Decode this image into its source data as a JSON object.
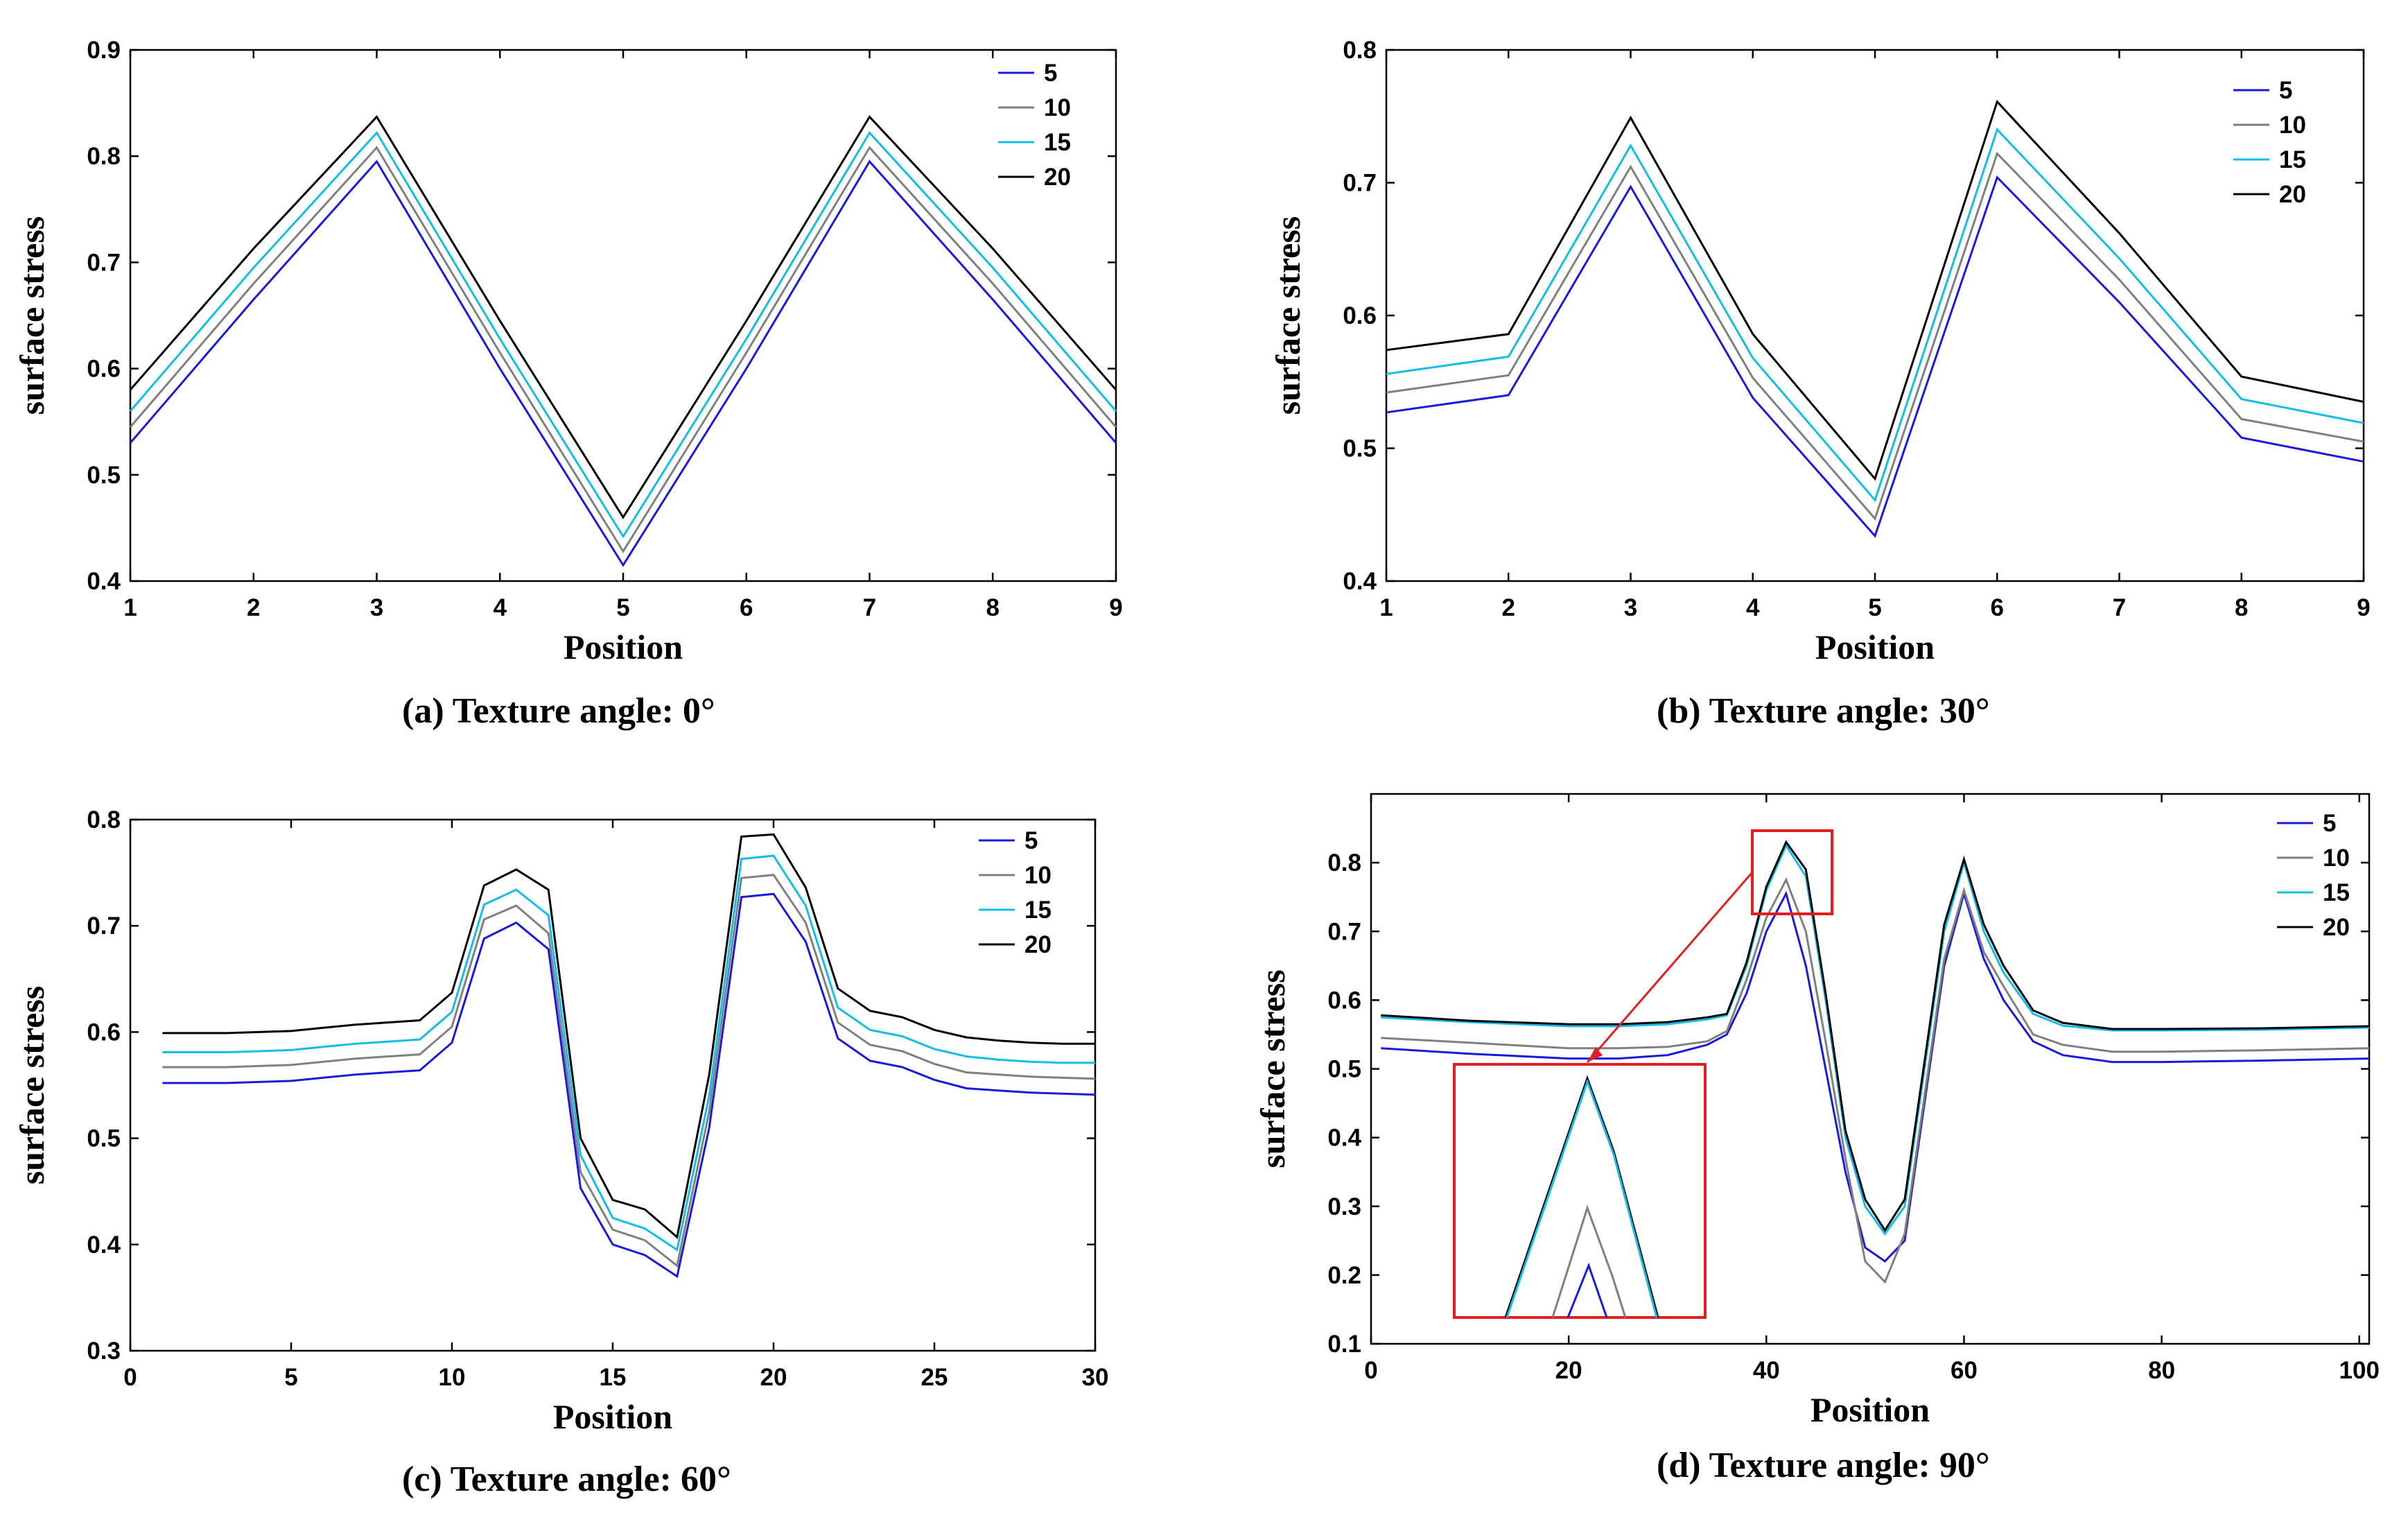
{
  "colors": {
    "s5": "#1a1adc",
    "s10": "#808080",
    "s15": "#14bde8",
    "s20": "#000000",
    "inset": "#e02020"
  },
  "chart_data": [
    {
      "id": "a",
      "type": "line",
      "caption": "(a)   Texture angle: 0°",
      "xlabel": "Position",
      "ylabel": "surface stress",
      "xlim": [
        1,
        9
      ],
      "ylim": [
        0.4,
        0.9
      ],
      "xticks": [
        "1",
        "2",
        "3",
        "4",
        "5",
        "6",
        "7",
        "8",
        "9"
      ],
      "yticks": [
        "0.4",
        "0.5",
        "0.6",
        "0.7",
        "0.8",
        "0.9"
      ],
      "legend": [
        "5",
        "10",
        "15",
        "20"
      ],
      "x": [
        1,
        2,
        3,
        4,
        5,
        6,
        7,
        8,
        9
      ],
      "series": [
        {
          "name": "5",
          "values": [
            0.53,
            0.665,
            0.795,
            0.6,
            0.415,
            0.6,
            0.795,
            0.665,
            0.53
          ]
        },
        {
          "name": "10",
          "values": [
            0.545,
            0.68,
            0.808,
            0.615,
            0.428,
            0.615,
            0.808,
            0.68,
            0.545
          ]
        },
        {
          "name": "15",
          "values": [
            0.56,
            0.695,
            0.822,
            0.628,
            0.442,
            0.628,
            0.822,
            0.695,
            0.56
          ]
        },
        {
          "name": "20",
          "values": [
            0.58,
            0.713,
            0.837,
            0.645,
            0.46,
            0.645,
            0.837,
            0.713,
            0.58
          ]
        }
      ]
    },
    {
      "id": "b",
      "type": "line",
      "caption": "(b)   Texture angle: 30°",
      "xlabel": "Position",
      "ylabel": "surface stress",
      "xlim": [
        1,
        9
      ],
      "ylim": [
        0.4,
        0.8
      ],
      "xticks": [
        "1",
        "2",
        "3",
        "4",
        "5",
        "6",
        "7",
        "8",
        "9"
      ],
      "yticks": [
        "0.4",
        "0.5",
        "0.6",
        "0.7",
        "0.8"
      ],
      "legend": [
        "5",
        "10",
        "15",
        "20"
      ],
      "x": [
        1,
        2,
        3,
        4,
        5,
        6,
        7,
        8,
        9
      ],
      "series": [
        {
          "name": "5",
          "values": [
            0.527,
            0.54,
            0.697,
            0.538,
            0.434,
            0.704,
            0.61,
            0.508,
            0.49
          ]
        },
        {
          "name": "10",
          "values": [
            0.542,
            0.555,
            0.712,
            0.553,
            0.447,
            0.722,
            0.627,
            0.522,
            0.505
          ]
        },
        {
          "name": "15",
          "values": [
            0.556,
            0.569,
            0.728,
            0.568,
            0.461,
            0.74,
            0.643,
            0.537,
            0.519
          ]
        },
        {
          "name": "20",
          "values": [
            0.574,
            0.586,
            0.749,
            0.586,
            0.477,
            0.761,
            0.662,
            0.554,
            0.535
          ]
        }
      ]
    },
    {
      "id": "c",
      "type": "line",
      "caption": "(c)   Texture angle: 60°",
      "xlabel": "Position",
      "ylabel": "surface stress",
      "xlim": [
        0,
        30
      ],
      "ylim": [
        0.3,
        0.8
      ],
      "xticks": [
        "0",
        "5",
        "10",
        "15",
        "20",
        "25",
        "30"
      ],
      "yticks": [
        "0.3",
        "0.4",
        "0.5",
        "0.6",
        "0.7",
        "0.8"
      ],
      "legend": [
        "5",
        "10",
        "15",
        "20"
      ],
      "x": [
        1,
        2,
        3,
        4,
        5,
        6,
        7,
        8,
        9,
        10,
        11,
        12,
        13,
        14,
        15,
        16,
        17,
        18,
        19,
        20,
        21,
        22,
        23,
        24,
        25,
        26,
        27,
        28,
        29,
        30
      ],
      "series": [
        {
          "name": "5",
          "values": [
            0.552,
            0.552,
            0.552,
            0.553,
            0.554,
            0.557,
            0.56,
            0.562,
            0.564,
            0.59,
            0.688,
            0.703,
            0.678,
            0.453,
            0.4,
            0.39,
            0.37,
            0.51,
            0.727,
            0.73,
            0.685,
            0.594,
            0.573,
            0.567,
            0.555,
            0.547,
            0.545,
            0.543,
            0.542,
            0.541
          ]
        },
        {
          "name": "10",
          "values": [
            0.567,
            0.567,
            0.567,
            0.568,
            0.569,
            0.572,
            0.575,
            0.577,
            0.579,
            0.605,
            0.706,
            0.719,
            0.693,
            0.468,
            0.414,
            0.404,
            0.38,
            0.525,
            0.745,
            0.748,
            0.703,
            0.609,
            0.588,
            0.582,
            0.57,
            0.562,
            0.56,
            0.558,
            0.557,
            0.556
          ]
        },
        {
          "name": "15",
          "values": [
            0.581,
            0.581,
            0.581,
            0.582,
            0.583,
            0.586,
            0.589,
            0.591,
            0.593,
            0.619,
            0.72,
            0.734,
            0.71,
            0.484,
            0.425,
            0.415,
            0.395,
            0.54,
            0.763,
            0.766,
            0.719,
            0.623,
            0.602,
            0.596,
            0.584,
            0.577,
            0.574,
            0.572,
            0.571,
            0.571
          ]
        },
        {
          "name": "20",
          "values": [
            0.599,
            0.599,
            0.599,
            0.6,
            0.601,
            0.604,
            0.607,
            0.609,
            0.611,
            0.637,
            0.738,
            0.753,
            0.734,
            0.5,
            0.442,
            0.433,
            0.407,
            0.56,
            0.784,
            0.786,
            0.736,
            0.641,
            0.62,
            0.614,
            0.602,
            0.595,
            0.592,
            0.59,
            0.589,
            0.589
          ]
        }
      ]
    },
    {
      "id": "d",
      "type": "line",
      "caption": "(d)   Texture angle: 90°",
      "xlabel": "Position",
      "ylabel": "surface stress",
      "xlim": [
        0,
        101
      ],
      "ylim": [
        0.1,
        0.9
      ],
      "xticks": [
        "0",
        "20",
        "40",
        "60",
        "80",
        "100"
      ],
      "yticks": [
        "0.1",
        "0.2",
        "0.3",
        "0.4",
        "0.5",
        "0.6",
        "0.7",
        "0.8"
      ],
      "legend": [
        "5",
        "10",
        "15",
        "20"
      ],
      "x": [
        1,
        10,
        20,
        25,
        30,
        34,
        36,
        38,
        40,
        42,
        44,
        46,
        48,
        50,
        52,
        54,
        56,
        58,
        60,
        62,
        64,
        67,
        70,
        75,
        80,
        90,
        101
      ],
      "series": [
        {
          "name": "5",
          "values": [
            0.53,
            0.522,
            0.515,
            0.515,
            0.52,
            0.535,
            0.55,
            0.61,
            0.7,
            0.755,
            0.65,
            0.5,
            0.35,
            0.24,
            0.22,
            0.25,
            0.45,
            0.65,
            0.755,
            0.66,
            0.6,
            0.54,
            0.52,
            0.51,
            0.51,
            0.512,
            0.515
          ]
        },
        {
          "name": "10",
          "values": [
            0.545,
            0.538,
            0.53,
            0.53,
            0.532,
            0.54,
            0.555,
            0.63,
            0.72,
            0.775,
            0.7,
            0.54,
            0.37,
            0.22,
            0.19,
            0.26,
            0.46,
            0.66,
            0.76,
            0.67,
            0.62,
            0.55,
            0.535,
            0.525,
            0.525,
            0.527,
            0.53
          ]
        },
        {
          "name": "15",
          "values": [
            0.575,
            0.568,
            0.562,
            0.562,
            0.565,
            0.572,
            0.578,
            0.65,
            0.76,
            0.825,
            0.78,
            0.6,
            0.4,
            0.3,
            0.26,
            0.3,
            0.5,
            0.7,
            0.8,
            0.7,
            0.64,
            0.58,
            0.563,
            0.556,
            0.556,
            0.557,
            0.56
          ]
        },
        {
          "name": "20",
          "values": [
            0.578,
            0.57,
            0.565,
            0.565,
            0.568,
            0.575,
            0.58,
            0.655,
            0.765,
            0.83,
            0.79,
            0.61,
            0.41,
            0.31,
            0.265,
            0.31,
            0.51,
            0.71,
            0.805,
            0.71,
            0.65,
            0.585,
            0.567,
            0.558,
            0.558,
            0.559,
            0.562
          ]
        }
      ]
    }
  ]
}
